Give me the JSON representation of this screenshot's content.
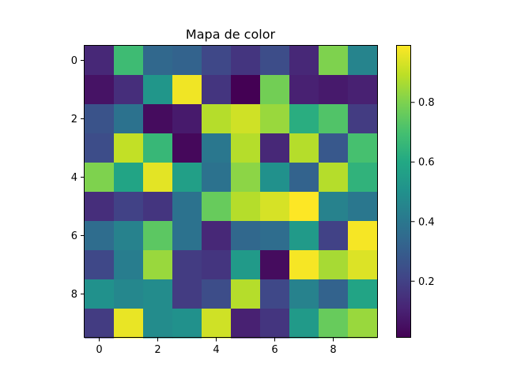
{
  "chart_data": {
    "type": "heatmap",
    "title": "Mapa de color",
    "xlabel": "",
    "ylabel": "",
    "x_ticks": [
      "0",
      "2",
      "4",
      "6",
      "8"
    ],
    "y_ticks": [
      "0",
      "2",
      "4",
      "6",
      "8"
    ],
    "colorbar": {
      "vmin": 0.01,
      "vmax": 0.99,
      "ticks": [
        "0.2",
        "0.4",
        "0.6",
        "0.8"
      ]
    },
    "values": [
      [
        0.12,
        0.68,
        0.34,
        0.32,
        0.22,
        0.16,
        0.24,
        0.12,
        0.8,
        0.45
      ],
      [
        0.06,
        0.14,
        0.52,
        0.97,
        0.16,
        0.01,
        0.78,
        0.1,
        0.08,
        0.1
      ],
      [
        0.26,
        0.38,
        0.04,
        0.08,
        0.88,
        0.92,
        0.84,
        0.62,
        0.72,
        0.18
      ],
      [
        0.24,
        0.9,
        0.66,
        0.03,
        0.4,
        0.88,
        0.12,
        0.88,
        0.28,
        0.7
      ],
      [
        0.8,
        0.58,
        0.95,
        0.56,
        0.38,
        0.82,
        0.5,
        0.32,
        0.88,
        0.64
      ],
      [
        0.14,
        0.2,
        0.16,
        0.38,
        0.76,
        0.88,
        0.93,
        0.99,
        0.44,
        0.4
      ],
      [
        0.36,
        0.44,
        0.74,
        0.38,
        0.12,
        0.34,
        0.36,
        0.54,
        0.2,
        0.98
      ],
      [
        0.22,
        0.42,
        0.84,
        0.18,
        0.16,
        0.54,
        0.04,
        0.98,
        0.86,
        0.94
      ],
      [
        0.5,
        0.46,
        0.48,
        0.18,
        0.24,
        0.88,
        0.22,
        0.44,
        0.32,
        0.58
      ],
      [
        0.18,
        0.96,
        0.48,
        0.5,
        0.92,
        0.1,
        0.16,
        0.54,
        0.76,
        0.84
      ]
    ],
    "colormap": "viridis"
  }
}
